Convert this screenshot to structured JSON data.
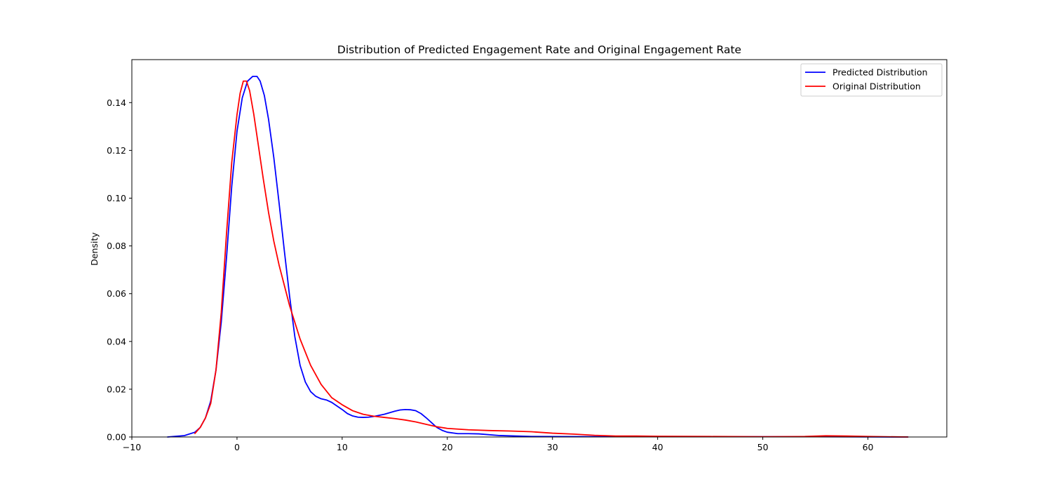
{
  "chart_data": {
    "type": "line",
    "title": "Distribution of Predicted Engagement Rate and Original Engagement Rate",
    "xlabel": "",
    "ylabel": "Density",
    "xlim": [
      -10,
      67.5
    ],
    "ylim": [
      0,
      0.158
    ],
    "xticks": [
      -10,
      0,
      10,
      20,
      30,
      40,
      50,
      60
    ],
    "yticks": [
      0.0,
      0.02,
      0.04,
      0.06,
      0.08,
      0.1,
      0.12,
      0.14
    ],
    "ytick_labels": [
      "0.00",
      "0.02",
      "0.04",
      "0.06",
      "0.08",
      "0.10",
      "0.12",
      "0.14"
    ],
    "xtick_labels": [
      "−10",
      "0",
      "10",
      "20",
      "30",
      "40",
      "50",
      "60"
    ],
    "grid": false,
    "legend": "top-right",
    "series": [
      {
        "name": "Predicted Distribution",
        "color": "#0000ff",
        "x": [
          -6.6,
          -5.0,
          -4.0,
          -3.5,
          -3.0,
          -2.5,
          -2.0,
          -1.5,
          -1.0,
          -0.5,
          0.0,
          0.5,
          1.0,
          1.5,
          1.9,
          2.2,
          2.6,
          3.0,
          3.5,
          4.0,
          4.5,
          5.0,
          5.5,
          6.0,
          6.5,
          7.0,
          7.5,
          8.0,
          8.5,
          9.0,
          9.5,
          10.0,
          10.5,
          11.0,
          11.5,
          12.0,
          12.5,
          13.0,
          14.0,
          15.0,
          15.5,
          16.0,
          16.5,
          17.0,
          17.5,
          18.0,
          18.5,
          19.0,
          19.5,
          20.0,
          21.0,
          22.0,
          23.0,
          25.0,
          28.0,
          35.0,
          45.0,
          55.0,
          63.8
        ],
        "y": [
          0.0,
          0.0006,
          0.002,
          0.004,
          0.008,
          0.015,
          0.028,
          0.048,
          0.075,
          0.105,
          0.128,
          0.142,
          0.149,
          0.151,
          0.151,
          0.149,
          0.143,
          0.133,
          0.117,
          0.098,
          0.078,
          0.059,
          0.042,
          0.03,
          0.023,
          0.019,
          0.017,
          0.016,
          0.0155,
          0.0145,
          0.013,
          0.0115,
          0.0098,
          0.0088,
          0.0083,
          0.0082,
          0.0083,
          0.0086,
          0.0095,
          0.0108,
          0.0113,
          0.0115,
          0.0114,
          0.011,
          0.0098,
          0.008,
          0.006,
          0.004,
          0.0028,
          0.002,
          0.0014,
          0.0014,
          0.0013,
          0.0006,
          0.0002,
          0.0001,
          0.0001,
          0.0001,
          0.0
        ]
      },
      {
        "name": "Original Distribution",
        "color": "#ff0000",
        "x": [
          -4.0,
          -3.5,
          -3.0,
          -2.5,
          -2.0,
          -1.5,
          -1.0,
          -0.5,
          0.0,
          0.3,
          0.6,
          0.9,
          1.2,
          1.6,
          2.0,
          2.5,
          3.0,
          3.5,
          4.0,
          5.0,
          6.0,
          7.0,
          8.0,
          9.0,
          10.0,
          11.0,
          12.0,
          13.0,
          14.0,
          15.0,
          16.0,
          17.0,
          18.0,
          19.0,
          20.0,
          22.0,
          24.0,
          26.0,
          28.0,
          30.0,
          32.0,
          34.0,
          36.0,
          38.0,
          40.0,
          45.0,
          50.0,
          54.0,
          56.0,
          58.0,
          60.0,
          63.8
        ],
        "y": [
          0.0015,
          0.004,
          0.008,
          0.014,
          0.028,
          0.052,
          0.085,
          0.115,
          0.135,
          0.144,
          0.149,
          0.149,
          0.145,
          0.135,
          0.123,
          0.108,
          0.094,
          0.082,
          0.072,
          0.055,
          0.041,
          0.03,
          0.022,
          0.0165,
          0.0135,
          0.011,
          0.0095,
          0.0087,
          0.0082,
          0.0077,
          0.0071,
          0.0063,
          0.0053,
          0.0043,
          0.0036,
          0.003,
          0.0027,
          0.0025,
          0.0022,
          0.0016,
          0.0012,
          0.0007,
          0.0004,
          0.0004,
          0.0003,
          0.0002,
          0.0001,
          0.0002,
          0.0005,
          0.0004,
          0.0002,
          0.0
        ]
      }
    ]
  }
}
